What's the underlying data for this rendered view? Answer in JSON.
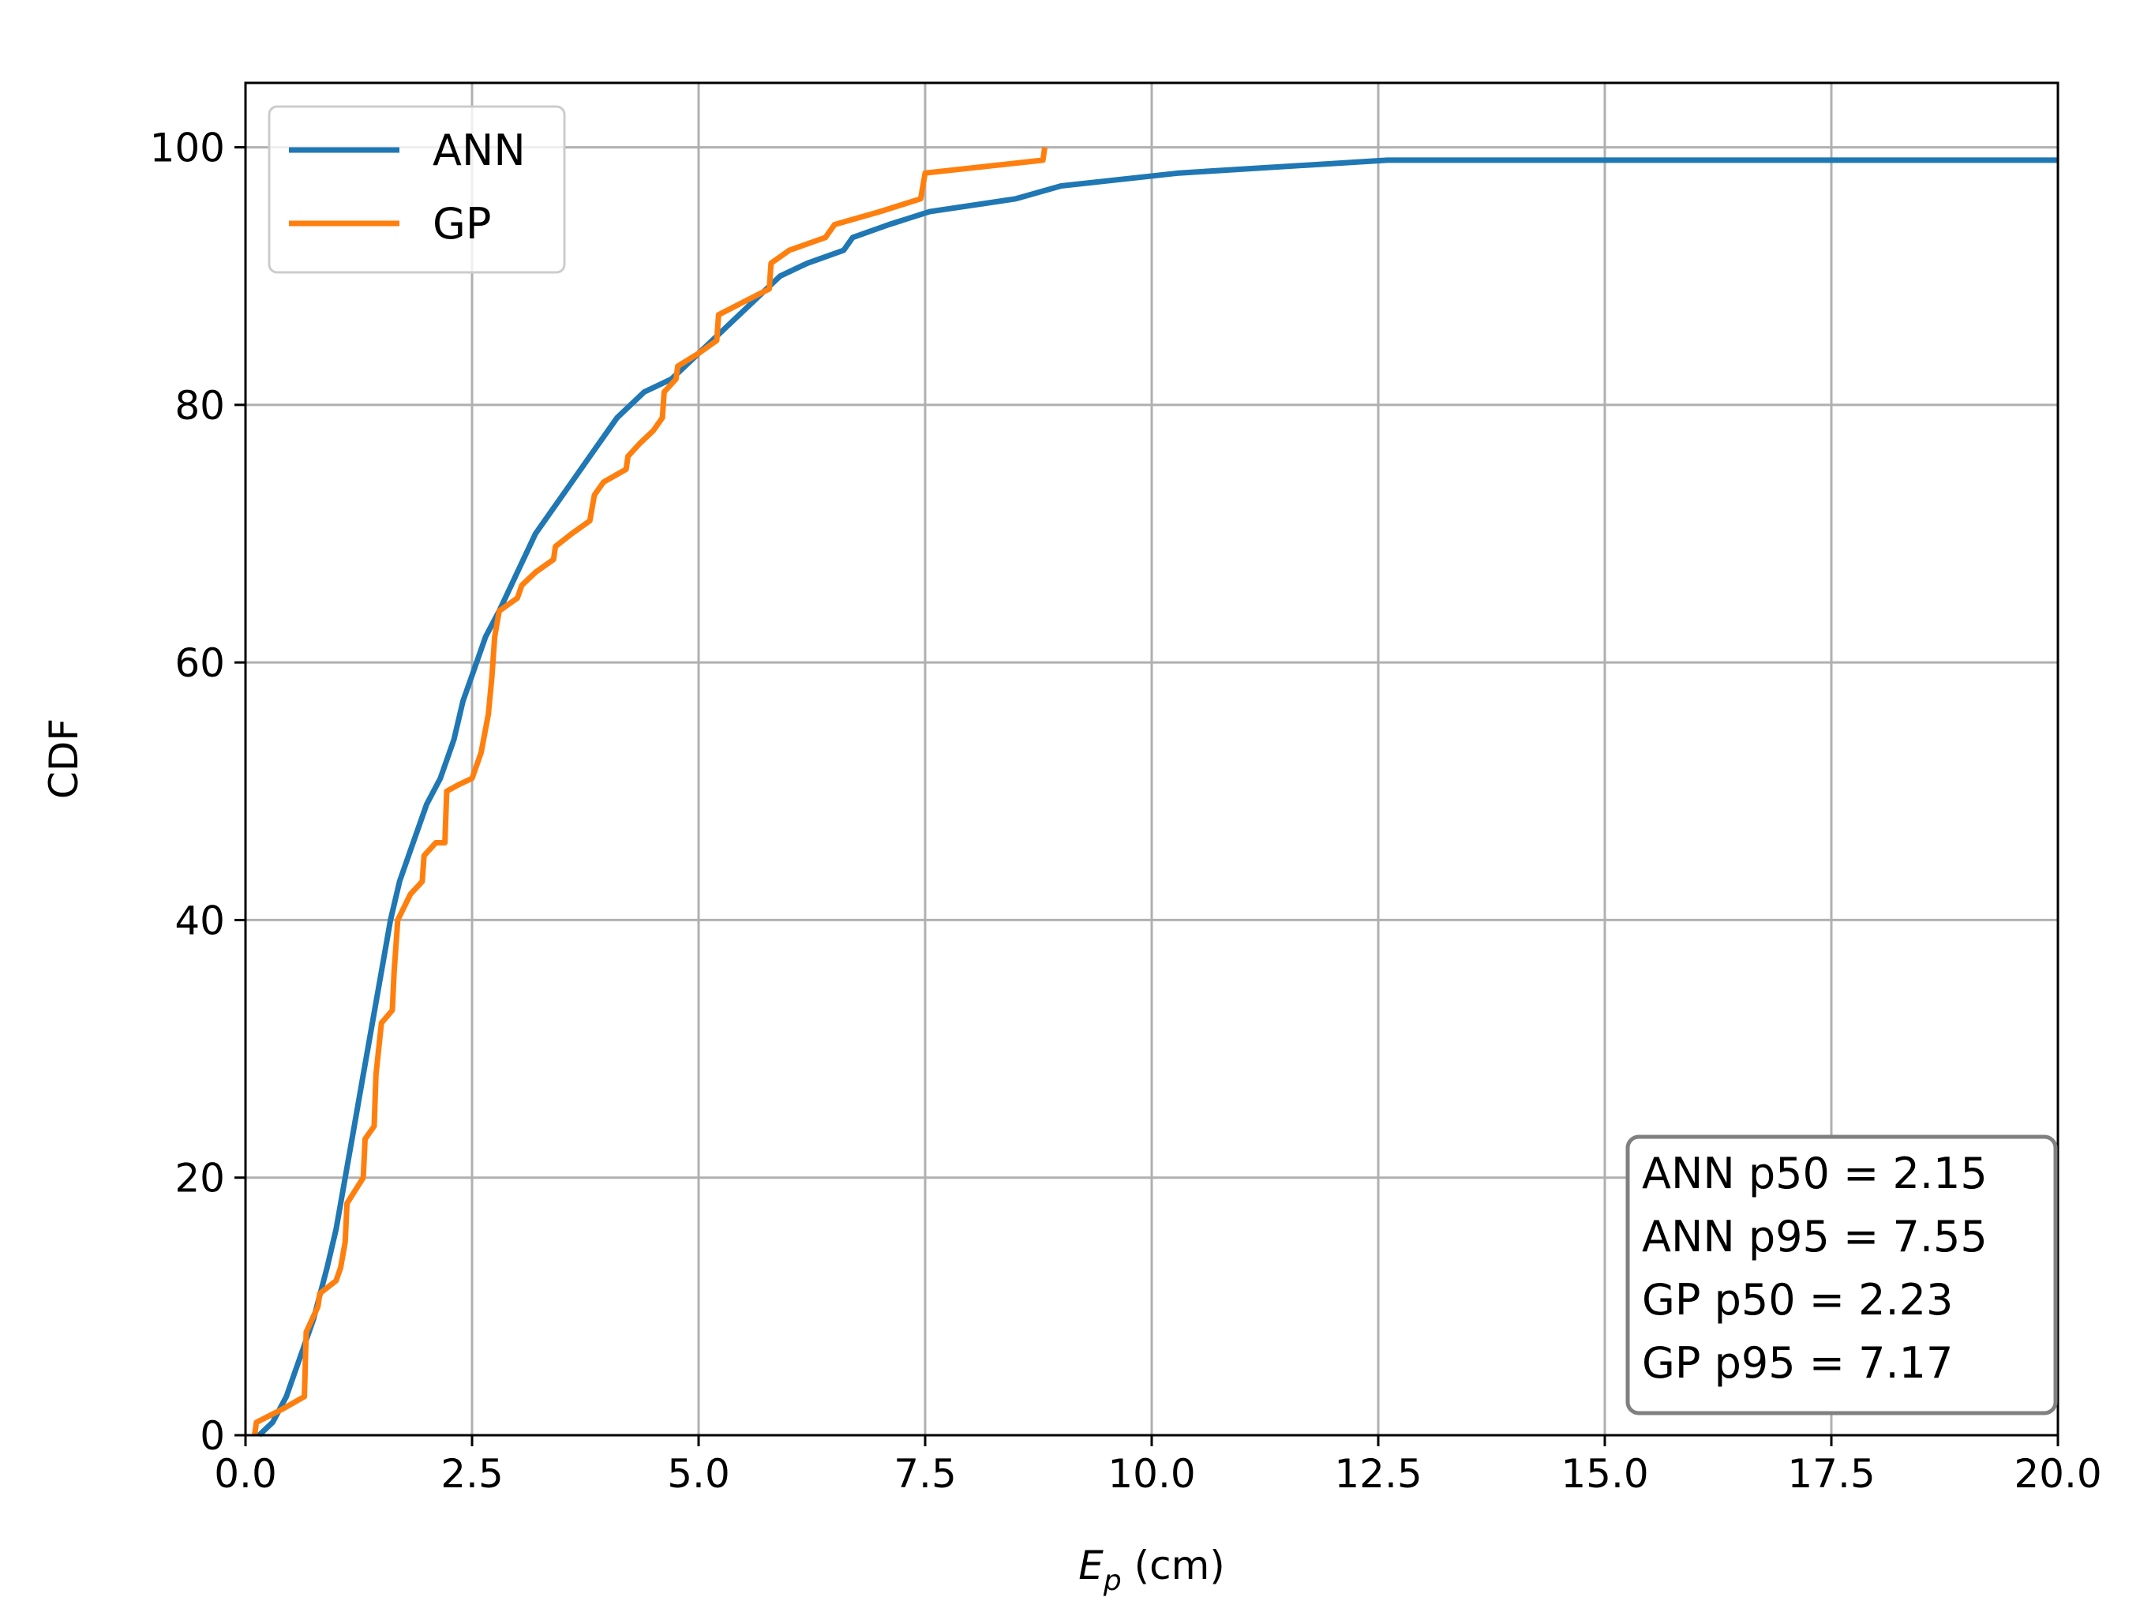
{
  "chart_data": {
    "type": "line",
    "xlabel_main": "E",
    "xlabel_sub": "p",
    "xlabel_unit": " (cm)",
    "ylabel": "CDF",
    "xlim": [
      0,
      20
    ],
    "ylim": [
      0,
      105
    ],
    "x_ticks": [
      0,
      2.5,
      5,
      7.5,
      10,
      12.5,
      15,
      17.5,
      20
    ],
    "x_tick_labels": [
      "0.0",
      "2.5",
      "5.0",
      "7.5",
      "10.0",
      "12.5",
      "15.0",
      "17.5",
      "20.0"
    ],
    "y_ticks": [
      0,
      20,
      40,
      60,
      80,
      100
    ],
    "y_tick_labels": [
      "0",
      "20",
      "40",
      "60",
      "80",
      "100"
    ],
    "grid": true,
    "legend_position": "top-left",
    "series": [
      {
        "name": "ANN",
        "color": "#1f77b4",
        "points": [
          [
            0.15,
            0
          ],
          [
            0.3,
            1
          ],
          [
            0.45,
            3
          ],
          [
            0.6,
            6
          ],
          [
            0.75,
            9
          ],
          [
            0.9,
            13
          ],
          [
            1.0,
            16
          ],
          [
            1.1,
            20
          ],
          [
            1.2,
            24
          ],
          [
            1.3,
            28
          ],
          [
            1.4,
            32
          ],
          [
            1.5,
            36
          ],
          [
            1.6,
            40
          ],
          [
            1.7,
            43
          ],
          [
            1.8,
            45
          ],
          [
            1.9,
            47
          ],
          [
            2.0,
            49
          ],
          [
            2.15,
            51
          ],
          [
            2.3,
            54
          ],
          [
            2.4,
            57
          ],
          [
            2.5,
            59
          ],
          [
            2.65,
            62
          ],
          [
            2.8,
            64
          ],
          [
            3.0,
            67
          ],
          [
            3.2,
            70
          ],
          [
            3.5,
            73
          ],
          [
            3.8,
            76
          ],
          [
            4.1,
            79
          ],
          [
            4.4,
            81
          ],
          [
            4.7,
            82
          ],
          [
            5.0,
            84
          ],
          [
            5.3,
            86
          ],
          [
            5.6,
            88
          ],
          [
            5.9,
            90
          ],
          [
            6.2,
            91
          ],
          [
            6.6,
            92
          ],
          [
            6.7,
            93
          ],
          [
            7.1,
            94
          ],
          [
            7.55,
            95
          ],
          [
            8.5,
            96
          ],
          [
            9.0,
            97
          ],
          [
            10.3,
            98
          ],
          [
            12.6,
            99
          ],
          [
            20.0,
            99
          ]
        ]
      },
      {
        "name": "GP",
        "color": "#ff7f0e",
        "points": [
          [
            0.1,
            0
          ],
          [
            0.12,
            1
          ],
          [
            0.4,
            2
          ],
          [
            0.65,
            3
          ],
          [
            0.67,
            8
          ],
          [
            0.8,
            10
          ],
          [
            0.82,
            11
          ],
          [
            1.0,
            12
          ],
          [
            1.05,
            13
          ],
          [
            1.1,
            15
          ],
          [
            1.12,
            18
          ],
          [
            1.3,
            20
          ],
          [
            1.32,
            23
          ],
          [
            1.42,
            24
          ],
          [
            1.44,
            28
          ],
          [
            1.5,
            32
          ],
          [
            1.62,
            33
          ],
          [
            1.64,
            36
          ],
          [
            1.68,
            40
          ],
          [
            1.82,
            42
          ],
          [
            1.95,
            43
          ],
          [
            1.97,
            45
          ],
          [
            2.1,
            46
          ],
          [
            2.2,
            46
          ],
          [
            2.22,
            50
          ],
          [
            2.35,
            50.5
          ],
          [
            2.5,
            51
          ],
          [
            2.6,
            53
          ],
          [
            2.68,
            56
          ],
          [
            2.72,
            59
          ],
          [
            2.75,
            62
          ],
          [
            2.8,
            64
          ],
          [
            3.0,
            65
          ],
          [
            3.05,
            66
          ],
          [
            3.2,
            67
          ],
          [
            3.4,
            68
          ],
          [
            3.42,
            69
          ],
          [
            3.6,
            70
          ],
          [
            3.8,
            71
          ],
          [
            3.85,
            73
          ],
          [
            3.95,
            74
          ],
          [
            4.2,
            75
          ],
          [
            4.22,
            76
          ],
          [
            4.35,
            77
          ],
          [
            4.5,
            78
          ],
          [
            4.6,
            79
          ],
          [
            4.62,
            81
          ],
          [
            4.75,
            82
          ],
          [
            4.77,
            83
          ],
          [
            5.0,
            84
          ],
          [
            5.2,
            85
          ],
          [
            5.22,
            87
          ],
          [
            5.5,
            88
          ],
          [
            5.78,
            89
          ],
          [
            5.8,
            91
          ],
          [
            6.0,
            92
          ],
          [
            6.4,
            93
          ],
          [
            6.5,
            94
          ],
          [
            7.0,
            95
          ],
          [
            7.45,
            96
          ],
          [
            7.5,
            98
          ],
          [
            8.8,
            99
          ],
          [
            8.82,
            100
          ]
        ]
      }
    ],
    "annotation_lines": [
      "ANN p50 = 2.15",
      "ANN p95 = 7.55",
      "GP p50 = 2.23",
      "GP p95 = 7.17"
    ],
    "annotation_position": "bottom-right"
  }
}
